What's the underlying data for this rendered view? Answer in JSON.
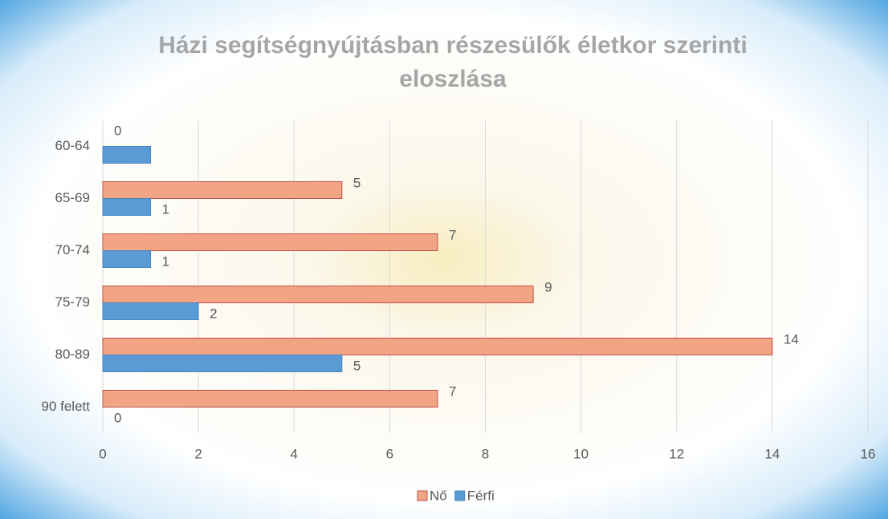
{
  "chart_data": {
    "type": "barh",
    "title": "Házi segítségnyújtásban részesülők életkor szerinti eloszlása",
    "categories": [
      "60-64",
      "65-69",
      "70-74",
      "75-79",
      "80-89",
      "90 felett"
    ],
    "series": [
      {
        "name": "Nő",
        "color": "#f2a585",
        "values": [
          0,
          5,
          7,
          9,
          14,
          7
        ]
      },
      {
        "name": "Férfi",
        "color": "#5b9bd5",
        "values": [
          1,
          1,
          1,
          2,
          5,
          0
        ],
        "value_labels": [
          null,
          1,
          1,
          2,
          5,
          0
        ]
      }
    ],
    "xlim": [
      0,
      16
    ],
    "xticks": [
      0,
      2,
      4,
      6,
      8,
      10,
      12,
      14,
      16
    ],
    "grid": true,
    "legend": "bottom"
  }
}
